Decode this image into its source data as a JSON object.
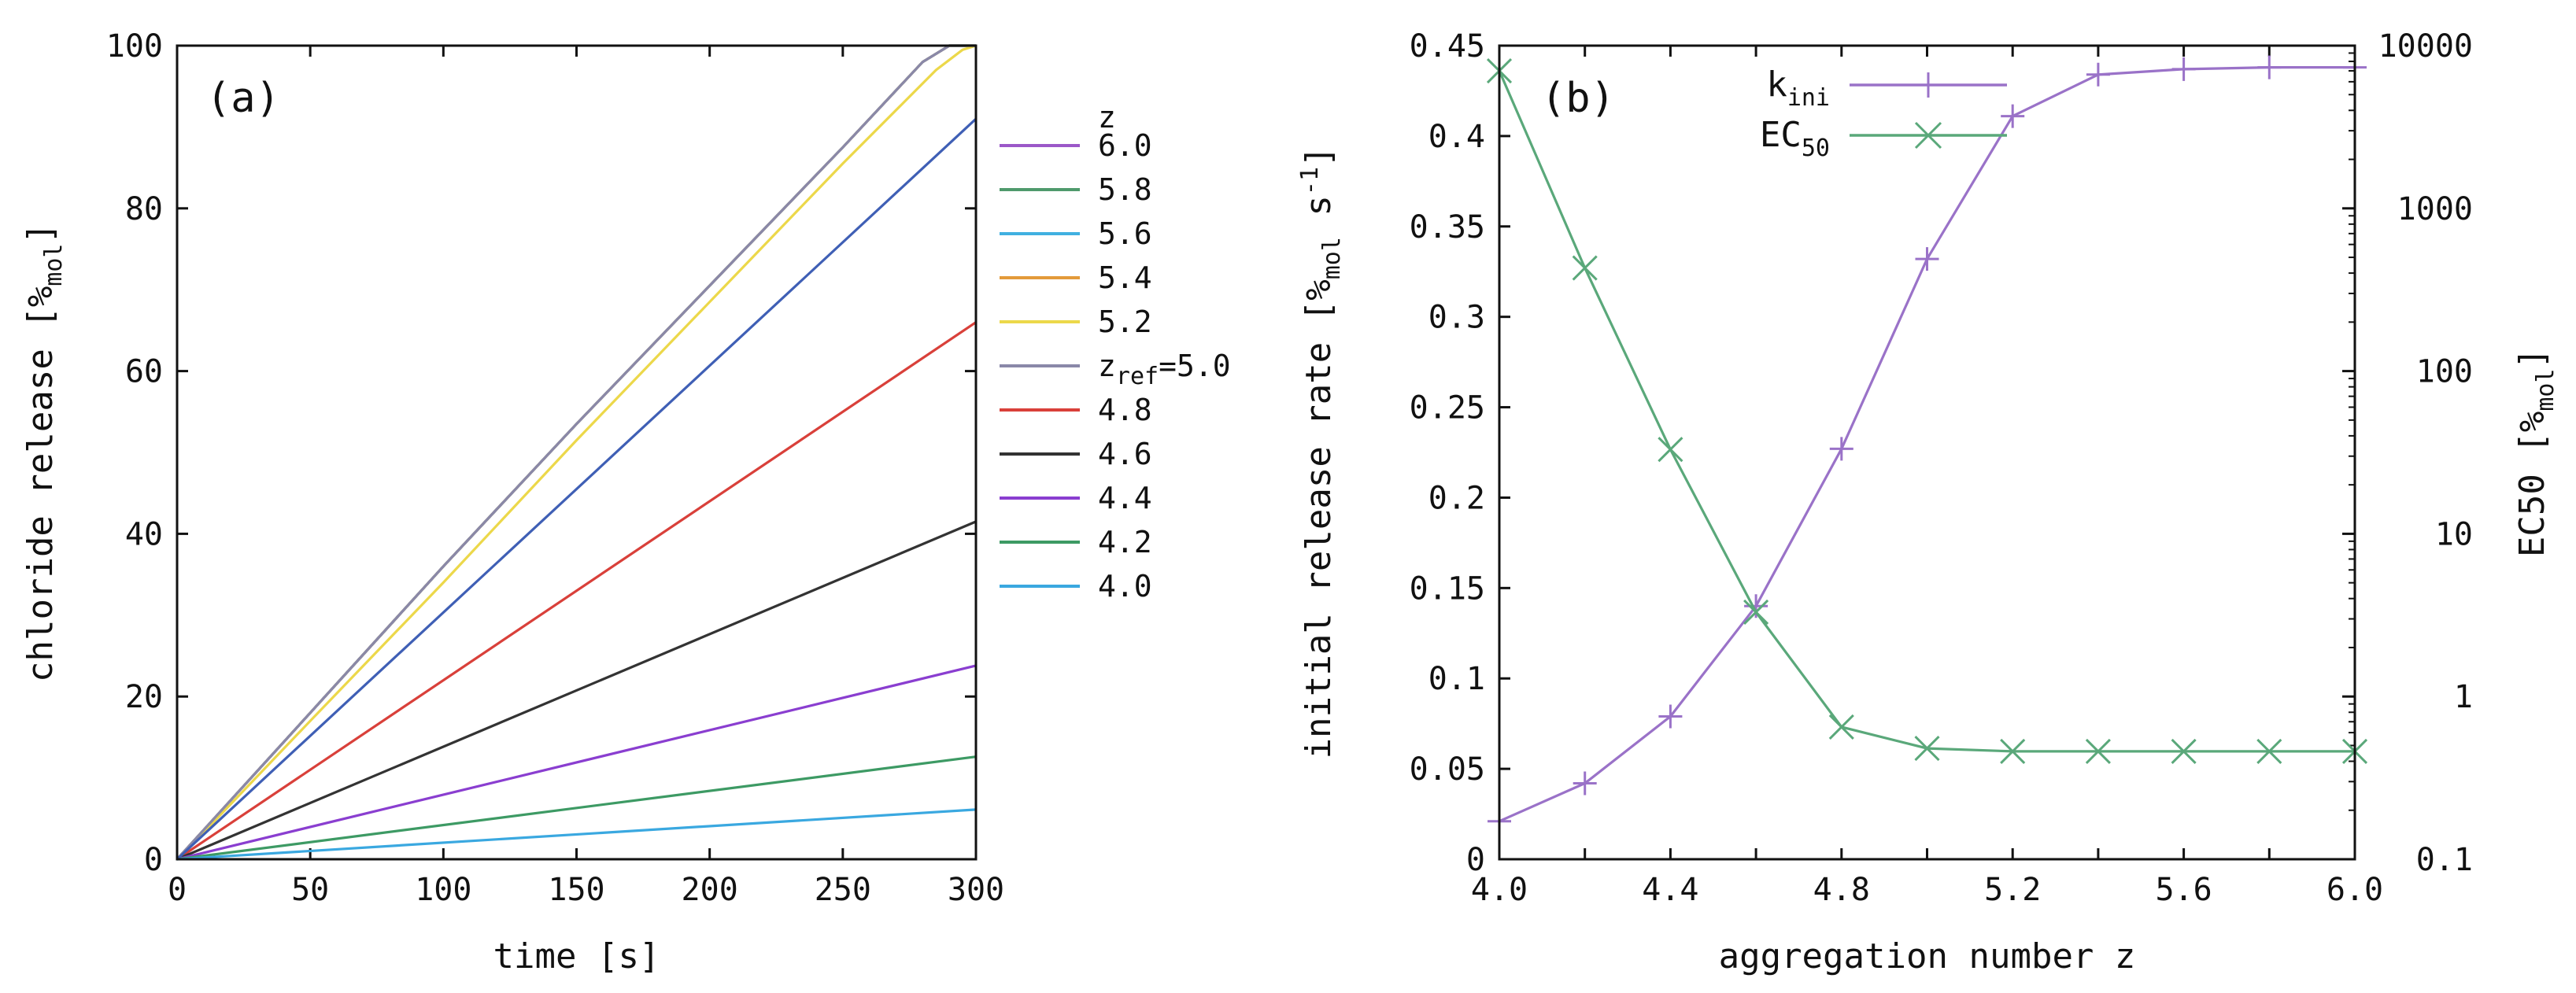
{
  "chart_data": [
    {
      "type": "line",
      "panel_label": "(a)",
      "xlabel": "time [s]",
      "ylabel": {
        "main": "chloride release [%",
        "sub": "mol",
        "end": "]"
      },
      "xlim": [
        0,
        300
      ],
      "ylim": [
        0,
        100
      ],
      "xticks": [
        "0",
        "50",
        "100",
        "150",
        "200",
        "250",
        "300"
      ],
      "yticks": [
        "0",
        "20",
        "40",
        "60",
        "80",
        "100"
      ],
      "legend_title": "z",
      "series": [
        {
          "name": "6.0",
          "color": "#9b58c8",
          "x": [
            0,
            10,
            50,
            100,
            150,
            200,
            250,
            280,
            290,
            300
          ],
          "y": [
            0,
            3.6,
            18,
            36,
            53.5,
            70.5,
            87.5,
            98,
            100,
            100
          ]
        },
        {
          "name": "5.8",
          "color": "#4f9a6c",
          "x": [
            0,
            10,
            50,
            100,
            150,
            200,
            250,
            280,
            290,
            300
          ],
          "y": [
            0,
            3.6,
            18,
            36,
            53.5,
            70.5,
            87.5,
            98,
            100,
            100
          ]
        },
        {
          "name": "5.6",
          "color": "#40b0e0",
          "x": [
            0,
            10,
            50,
            100,
            150,
            200,
            250,
            280,
            290,
            300
          ],
          "y": [
            0,
            3.6,
            18,
            36,
            53.5,
            70.5,
            87.5,
            98,
            100,
            100
          ]
        },
        {
          "name": "5.4",
          "color": "#e39a3a",
          "x": [
            0,
            10,
            50,
            100,
            150,
            200,
            250,
            280,
            290,
            300
          ],
          "y": [
            0,
            3.6,
            18,
            36,
            53.5,
            70.5,
            87.5,
            98,
            100,
            100
          ]
        },
        {
          "name": "5.2",
          "color": "#ecd84a",
          "x": [
            0,
            10,
            50,
            100,
            150,
            200,
            250,
            285,
            295,
            300
          ],
          "y": [
            0,
            3.3,
            17,
            34,
            51.5,
            68.5,
            85.5,
            97,
            99.5,
            100
          ]
        },
        {
          "name": "z_ref=5.0",
          "label_main": "z",
          "label_sub": "ref",
          "label_end": "=5.0",
          "color": "#8a88a8",
          "x": [
            0,
            10,
            50,
            100,
            150,
            200,
            250,
            280,
            290,
            300
          ],
          "y": [
            0,
            3.6,
            18,
            36,
            53.5,
            70.5,
            87.5,
            98,
            100,
            100
          ]
        },
        {
          "name": "4.8",
          "color": "#d9403a",
          "x": [
            0,
            300
          ],
          "y": [
            0,
            66
          ]
        },
        {
          "name": "4.6",
          "color": "#333333",
          "x": [
            0,
            300
          ],
          "y": [
            0,
            41.5
          ]
        },
        {
          "name": "4.4",
          "color": "#8a3ed0",
          "x": [
            0,
            300
          ],
          "y": [
            0,
            23.8
          ]
        },
        {
          "name": "4.2",
          "color": "#3d9a64",
          "x": [
            0,
            300
          ],
          "y": [
            0,
            12.6
          ]
        },
        {
          "name": "4.0",
          "color": "#3aa8e0",
          "x": [
            0,
            300
          ],
          "y": [
            0,
            6.1
          ]
        },
        {
          "name": "",
          "color": "#3f5fb5",
          "x": [
            0,
            300
          ],
          "y": [
            0,
            91
          ]
        }
      ]
    },
    {
      "type": "line",
      "panel_label": "(b)",
      "xlabel": "aggregation number z",
      "ylabel_left": {
        "main": "initial release rate [%",
        "sub": "mol",
        "mid": " s",
        "sup": "-1",
        "end": "]"
      },
      "ylabel_right": {
        "main": "EC50 [%",
        "sub": "mol",
        "end": "]"
      },
      "xlim": [
        4.0,
        6.0
      ],
      "ylim_left": [
        0,
        0.45
      ],
      "ylim_right": [
        0.1,
        10000
      ],
      "y_right_scale": "log",
      "xticks": [
        "4.0",
        "4.4",
        "4.8",
        "5.2",
        "5.6",
        "6.0"
      ],
      "yticks_left": [
        "0",
        "0.05",
        "0.1",
        "0.15",
        "0.2",
        "0.25",
        "0.3",
        "0.35",
        "0.4",
        "0.45"
      ],
      "yticks_right": [
        "0.1",
        "1",
        "10",
        "100",
        "1000",
        "10000"
      ],
      "series": [
        {
          "name": "k_ini",
          "label_main": "k",
          "label_sub": "ini",
          "axis": "left",
          "marker": "plus",
          "color": "#9a72c8",
          "x": [
            4.0,
            4.2,
            4.4,
            4.6,
            4.8,
            5.0,
            5.2,
            5.4,
            5.6,
            5.8,
            6.0
          ],
          "y": [
            0.021,
            0.042,
            0.079,
            0.14,
            0.227,
            0.332,
            0.411,
            0.434,
            0.437,
            0.438,
            0.438
          ]
        },
        {
          "name": "EC_50",
          "label_main": "EC",
          "label_sub": "50",
          "axis": "right",
          "marker": "cross",
          "color": "#5aa87a",
          "x": [
            4.0,
            4.2,
            4.4,
            4.6,
            4.8,
            5.0,
            5.2,
            5.4,
            5.6,
            5.8,
            6.0
          ],
          "y": [
            7000,
            430,
            33,
            3.3,
            0.65,
            0.48,
            0.46,
            0.46,
            0.46,
            0.46,
            0.46
          ]
        }
      ]
    }
  ]
}
